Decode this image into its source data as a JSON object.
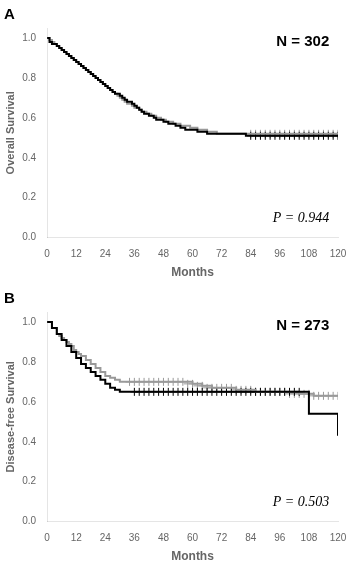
{
  "chart_data": [
    {
      "type": "line",
      "title": "A",
      "xlabel": "Months",
      "ylabel": "Overall Survival",
      "annotations": [
        "N = 302",
        "P = 0.944"
      ],
      "xlim": [
        0,
        120
      ],
      "ylim": [
        0,
        1.05
      ],
      "xticks": [
        0,
        12,
        24,
        36,
        48,
        60,
        72,
        84,
        96,
        108,
        120
      ],
      "yticks": [
        {
          "value": 0,
          "label": "0.0"
        },
        0.2,
        0.4,
        0.6,
        0.8,
        {
          "value": 1,
          "label": "1.0"
        }
      ],
      "grid": false,
      "series": [
        {
          "type": "step",
          "color": "#000000",
          "x": [
            0,
            1,
            2,
            4,
            5,
            6,
            7,
            8,
            9,
            10,
            11,
            12,
            13,
            14,
            15,
            16,
            17,
            18,
            19,
            20,
            21,
            22,
            23,
            24,
            25,
            26,
            27,
            28,
            30,
            31,
            32,
            33,
            35,
            36,
            37,
            38,
            39,
            40,
            41,
            42,
            43,
            44,
            45,
            47,
            48,
            49,
            50,
            51,
            52,
            53,
            54,
            55,
            56,
            57,
            58,
            59,
            60,
            62,
            64,
            66,
            68,
            70,
            72,
            74,
            76,
            78,
            80,
            82,
            84,
            86,
            88,
            90,
            92,
            94,
            96,
            98,
            100,
            102,
            104,
            106,
            108,
            110,
            112,
            114,
            116,
            118,
            120
          ],
          "values": [
            1.0,
            0.98,
            0.97,
            0.96,
            0.95,
            0.94,
            0.93,
            0.92,
            0.91,
            0.9,
            0.89,
            0.88,
            0.87,
            0.86,
            0.85,
            0.84,
            0.83,
            0.82,
            0.81,
            0.8,
            0.79,
            0.78,
            0.77,
            0.76,
            0.75,
            0.74,
            0.73,
            0.72,
            0.71,
            0.7,
            0.69,
            0.68,
            0.67,
            0.66,
            0.65,
            0.64,
            0.63,
            0.62,
            0.62,
            0.61,
            0.61,
            0.6,
            0.59,
            0.59,
            0.58,
            0.58,
            0.57,
            0.57,
            0.57,
            0.56,
            0.56,
            0.55,
            0.55,
            0.54,
            0.54,
            0.54,
            0.54,
            0.53,
            0.53,
            0.52,
            0.52,
            0.52,
            0.52,
            0.52,
            0.52,
            0.52,
            0.52,
            0.51,
            0.51,
            0.51,
            0.51,
            0.51,
            0.51,
            0.51,
            0.51,
            0.51,
            0.51,
            0.51,
            0.51,
            0.51,
            0.51,
            0.51,
            0.51,
            0.51,
            0.51,
            0.51,
            0.51
          ]
        },
        {
          "type": "step",
          "color": "#999999",
          "x": [
            0,
            1,
            2,
            3,
            4,
            5,
            6,
            7,
            8,
            9,
            10,
            11,
            12,
            13,
            14,
            15,
            16,
            17,
            18,
            19,
            20,
            21,
            22,
            23,
            24,
            25,
            26,
            27,
            28,
            29,
            30,
            31,
            32,
            33,
            34,
            35,
            36,
            37,
            38,
            39,
            40,
            41,
            42,
            43,
            44,
            45,
            46,
            47,
            48,
            49,
            50,
            51,
            52,
            53,
            54,
            55,
            56,
            57,
            58,
            59,
            60,
            62,
            64,
            66,
            68,
            70,
            72,
            74,
            76,
            78,
            80,
            82,
            84,
            86,
            88,
            90,
            92,
            94,
            96,
            98,
            100,
            102,
            104,
            106,
            108,
            110,
            112,
            114,
            116,
            118,
            120
          ],
          "values": [
            1.0,
            0.99,
            0.98,
            0.97,
            0.96,
            0.95,
            0.94,
            0.93,
            0.92,
            0.91,
            0.9,
            0.89,
            0.88,
            0.87,
            0.86,
            0.85,
            0.84,
            0.83,
            0.82,
            0.81,
            0.8,
            0.79,
            0.78,
            0.77,
            0.76,
            0.75,
            0.74,
            0.73,
            0.72,
            0.71,
            0.7,
            0.69,
            0.68,
            0.67,
            0.67,
            0.66,
            0.65,
            0.65,
            0.64,
            0.63,
            0.63,
            0.62,
            0.62,
            0.61,
            0.61,
            0.6,
            0.6,
            0.59,
            0.59,
            0.58,
            0.58,
            0.58,
            0.57,
            0.57,
            0.57,
            0.56,
            0.56,
            0.56,
            0.56,
            0.55,
            0.55,
            0.54,
            0.54,
            0.53,
            0.53,
            0.52,
            0.52,
            0.52,
            0.52,
            0.52,
            0.52,
            0.52,
            0.52,
            0.52,
            0.52,
            0.52,
            0.52,
            0.52,
            0.52,
            0.52,
            0.52,
            0.52,
            0.52,
            0.52,
            0.52,
            0.52,
            0.52,
            0.52,
            0.52,
            0.52,
            0.52
          ]
        },
        {
          "type": "scatter",
          "marker": "+",
          "color": "#000000",
          "x": [
            84,
            86,
            88,
            90,
            92,
            94,
            96,
            98,
            100,
            102,
            104,
            106,
            108,
            110,
            112,
            114,
            116,
            118,
            120
          ],
          "values": [
            0.51,
            0.51,
            0.51,
            0.51,
            0.51,
            0.51,
            0.51,
            0.51,
            0.51,
            0.51,
            0.51,
            0.51,
            0.51,
            0.51,
            0.51,
            0.51,
            0.51,
            0.51,
            0.51
          ]
        },
        {
          "type": "scatter",
          "marker": "+",
          "color": "#999999",
          "x": [
            84,
            86,
            88,
            90,
            92,
            94,
            96,
            98,
            100,
            102,
            104,
            106,
            108,
            110,
            112,
            114,
            116,
            118,
            120
          ],
          "values": [
            0.52,
            0.52,
            0.52,
            0.52,
            0.52,
            0.52,
            0.52,
            0.52,
            0.52,
            0.52,
            0.52,
            0.52,
            0.52,
            0.52,
            0.52,
            0.52,
            0.52,
            0.52,
            0.52
          ]
        }
      ]
    },
    {
      "type": "line",
      "title": "B",
      "xlabel": "Months",
      "ylabel": "Disease-free Survival",
      "annotations": [
        "N = 273",
        "P = 0.503"
      ],
      "xlim": [
        0,
        120
      ],
      "ylim": [
        0,
        1.05
      ],
      "xticks": [
        0,
        12,
        24,
        36,
        48,
        60,
        72,
        84,
        96,
        108,
        120
      ],
      "yticks": [
        {
          "value": 0,
          "label": "0.0"
        },
        0.2,
        0.4,
        0.6,
        0.8,
        {
          "value": 1,
          "label": "1.0"
        }
      ],
      "grid": false,
      "series": [
        {
          "type": "step",
          "color": "#000000",
          "x": [
            0,
            2,
            4,
            6,
            8,
            10,
            12,
            14,
            16,
            18,
            20,
            22,
            24,
            26,
            28,
            30,
            32,
            34,
            36,
            38,
            40,
            42,
            44,
            46,
            48,
            50,
            52,
            54,
            56,
            58,
            60,
            62,
            64,
            66,
            68,
            70,
            72,
            74,
            76,
            78,
            80,
            82,
            84,
            86,
            88,
            90,
            92,
            94,
            96,
            98,
            100,
            102,
            104,
            106,
            107,
            108,
            110,
            112,
            114,
            116,
            118,
            120
          ],
          "values": [
            1.0,
            0.97,
            0.94,
            0.91,
            0.88,
            0.85,
            0.82,
            0.79,
            0.77,
            0.75,
            0.73,
            0.71,
            0.69,
            0.67,
            0.66,
            0.65,
            0.65,
            0.65,
            0.65,
            0.65,
            0.65,
            0.65,
            0.65,
            0.65,
            0.65,
            0.65,
            0.65,
            0.65,
            0.65,
            0.65,
            0.65,
            0.65,
            0.65,
            0.65,
            0.65,
            0.65,
            0.65,
            0.65,
            0.65,
            0.65,
            0.65,
            0.65,
            0.65,
            0.65,
            0.65,
            0.65,
            0.65,
            0.65,
            0.65,
            0.65,
            0.65,
            0.65,
            0.65,
            0.65,
            0.65,
            0.54,
            0.54,
            0.54,
            0.54,
            0.54,
            0.54,
            0.43
          ]
        },
        {
          "type": "step",
          "color": "#999999",
          "x": [
            0,
            2,
            4,
            5,
            6,
            7,
            8,
            9,
            10,
            11,
            12,
            13,
            14,
            16,
            18,
            20,
            22,
            24,
            26,
            28,
            30,
            32,
            34,
            36,
            38,
            40,
            42,
            44,
            46,
            48,
            50,
            52,
            54,
            56,
            58,
            60,
            62,
            64,
            66,
            68,
            70,
            72,
            74,
            76,
            78,
            80,
            82,
            84,
            86,
            88,
            90,
            92,
            94,
            96,
            98,
            100,
            102,
            104,
            106,
            108,
            110,
            112,
            114,
            116,
            118,
            120
          ],
          "values": [
            1.0,
            0.97,
            0.94,
            0.93,
            0.92,
            0.91,
            0.9,
            0.89,
            0.88,
            0.86,
            0.85,
            0.84,
            0.83,
            0.81,
            0.79,
            0.77,
            0.75,
            0.73,
            0.72,
            0.71,
            0.7,
            0.7,
            0.7,
            0.7,
            0.7,
            0.7,
            0.7,
            0.7,
            0.7,
            0.7,
            0.7,
            0.7,
            0.7,
            0.7,
            0.7,
            0.69,
            0.69,
            0.68,
            0.68,
            0.67,
            0.67,
            0.67,
            0.67,
            0.67,
            0.66,
            0.66,
            0.66,
            0.66,
            0.65,
            0.65,
            0.65,
            0.65,
            0.65,
            0.65,
            0.65,
            0.65,
            0.65,
            0.64,
            0.64,
            0.64,
            0.63,
            0.63,
            0.63,
            0.63,
            0.63,
            0.63
          ]
        },
        {
          "type": "scatter",
          "marker": "+",
          "color": "#000000",
          "x": [
            36,
            38,
            40,
            42,
            44,
            46,
            48,
            50,
            52,
            54,
            56,
            58,
            60,
            62,
            64,
            66,
            68,
            70,
            72,
            74,
            76,
            78,
            80,
            82,
            84,
            86,
            88,
            90,
            92,
            94,
            96,
            98,
            100,
            102,
            104
          ],
          "values": [
            0.65,
            0.65,
            0.65,
            0.65,
            0.65,
            0.65,
            0.65,
            0.65,
            0.65,
            0.65,
            0.65,
            0.65,
            0.65,
            0.65,
            0.65,
            0.65,
            0.65,
            0.65,
            0.65,
            0.65,
            0.65,
            0.65,
            0.65,
            0.65,
            0.65,
            0.65,
            0.65,
            0.65,
            0.65,
            0.65,
            0.65,
            0.65,
            0.65,
            0.65,
            0.65
          ]
        },
        {
          "type": "scatter",
          "marker": "+",
          "color": "#999999",
          "x": [
            34,
            36,
            38,
            40,
            42,
            44,
            46,
            48,
            50,
            52,
            54,
            56,
            58,
            60,
            62,
            64,
            66,
            68,
            70,
            72,
            74,
            76,
            78,
            80,
            82,
            84,
            86,
            88,
            90,
            92,
            94,
            96,
            98,
            100,
            102,
            104,
            106,
            108,
            110,
            112,
            114,
            116,
            118,
            120
          ],
          "values": [
            0.7,
            0.7,
            0.7,
            0.7,
            0.7,
            0.7,
            0.7,
            0.7,
            0.7,
            0.7,
            0.7,
            0.7,
            0.69,
            0.69,
            0.68,
            0.68,
            0.67,
            0.67,
            0.67,
            0.67,
            0.67,
            0.67,
            0.66,
            0.66,
            0.66,
            0.66,
            0.65,
            0.65,
            0.65,
            0.65,
            0.65,
            0.65,
            0.65,
            0.64,
            0.64,
            0.64,
            0.64,
            0.64,
            0.63,
            0.63,
            0.63,
            0.63,
            0.63,
            0.63
          ]
        }
      ]
    }
  ]
}
